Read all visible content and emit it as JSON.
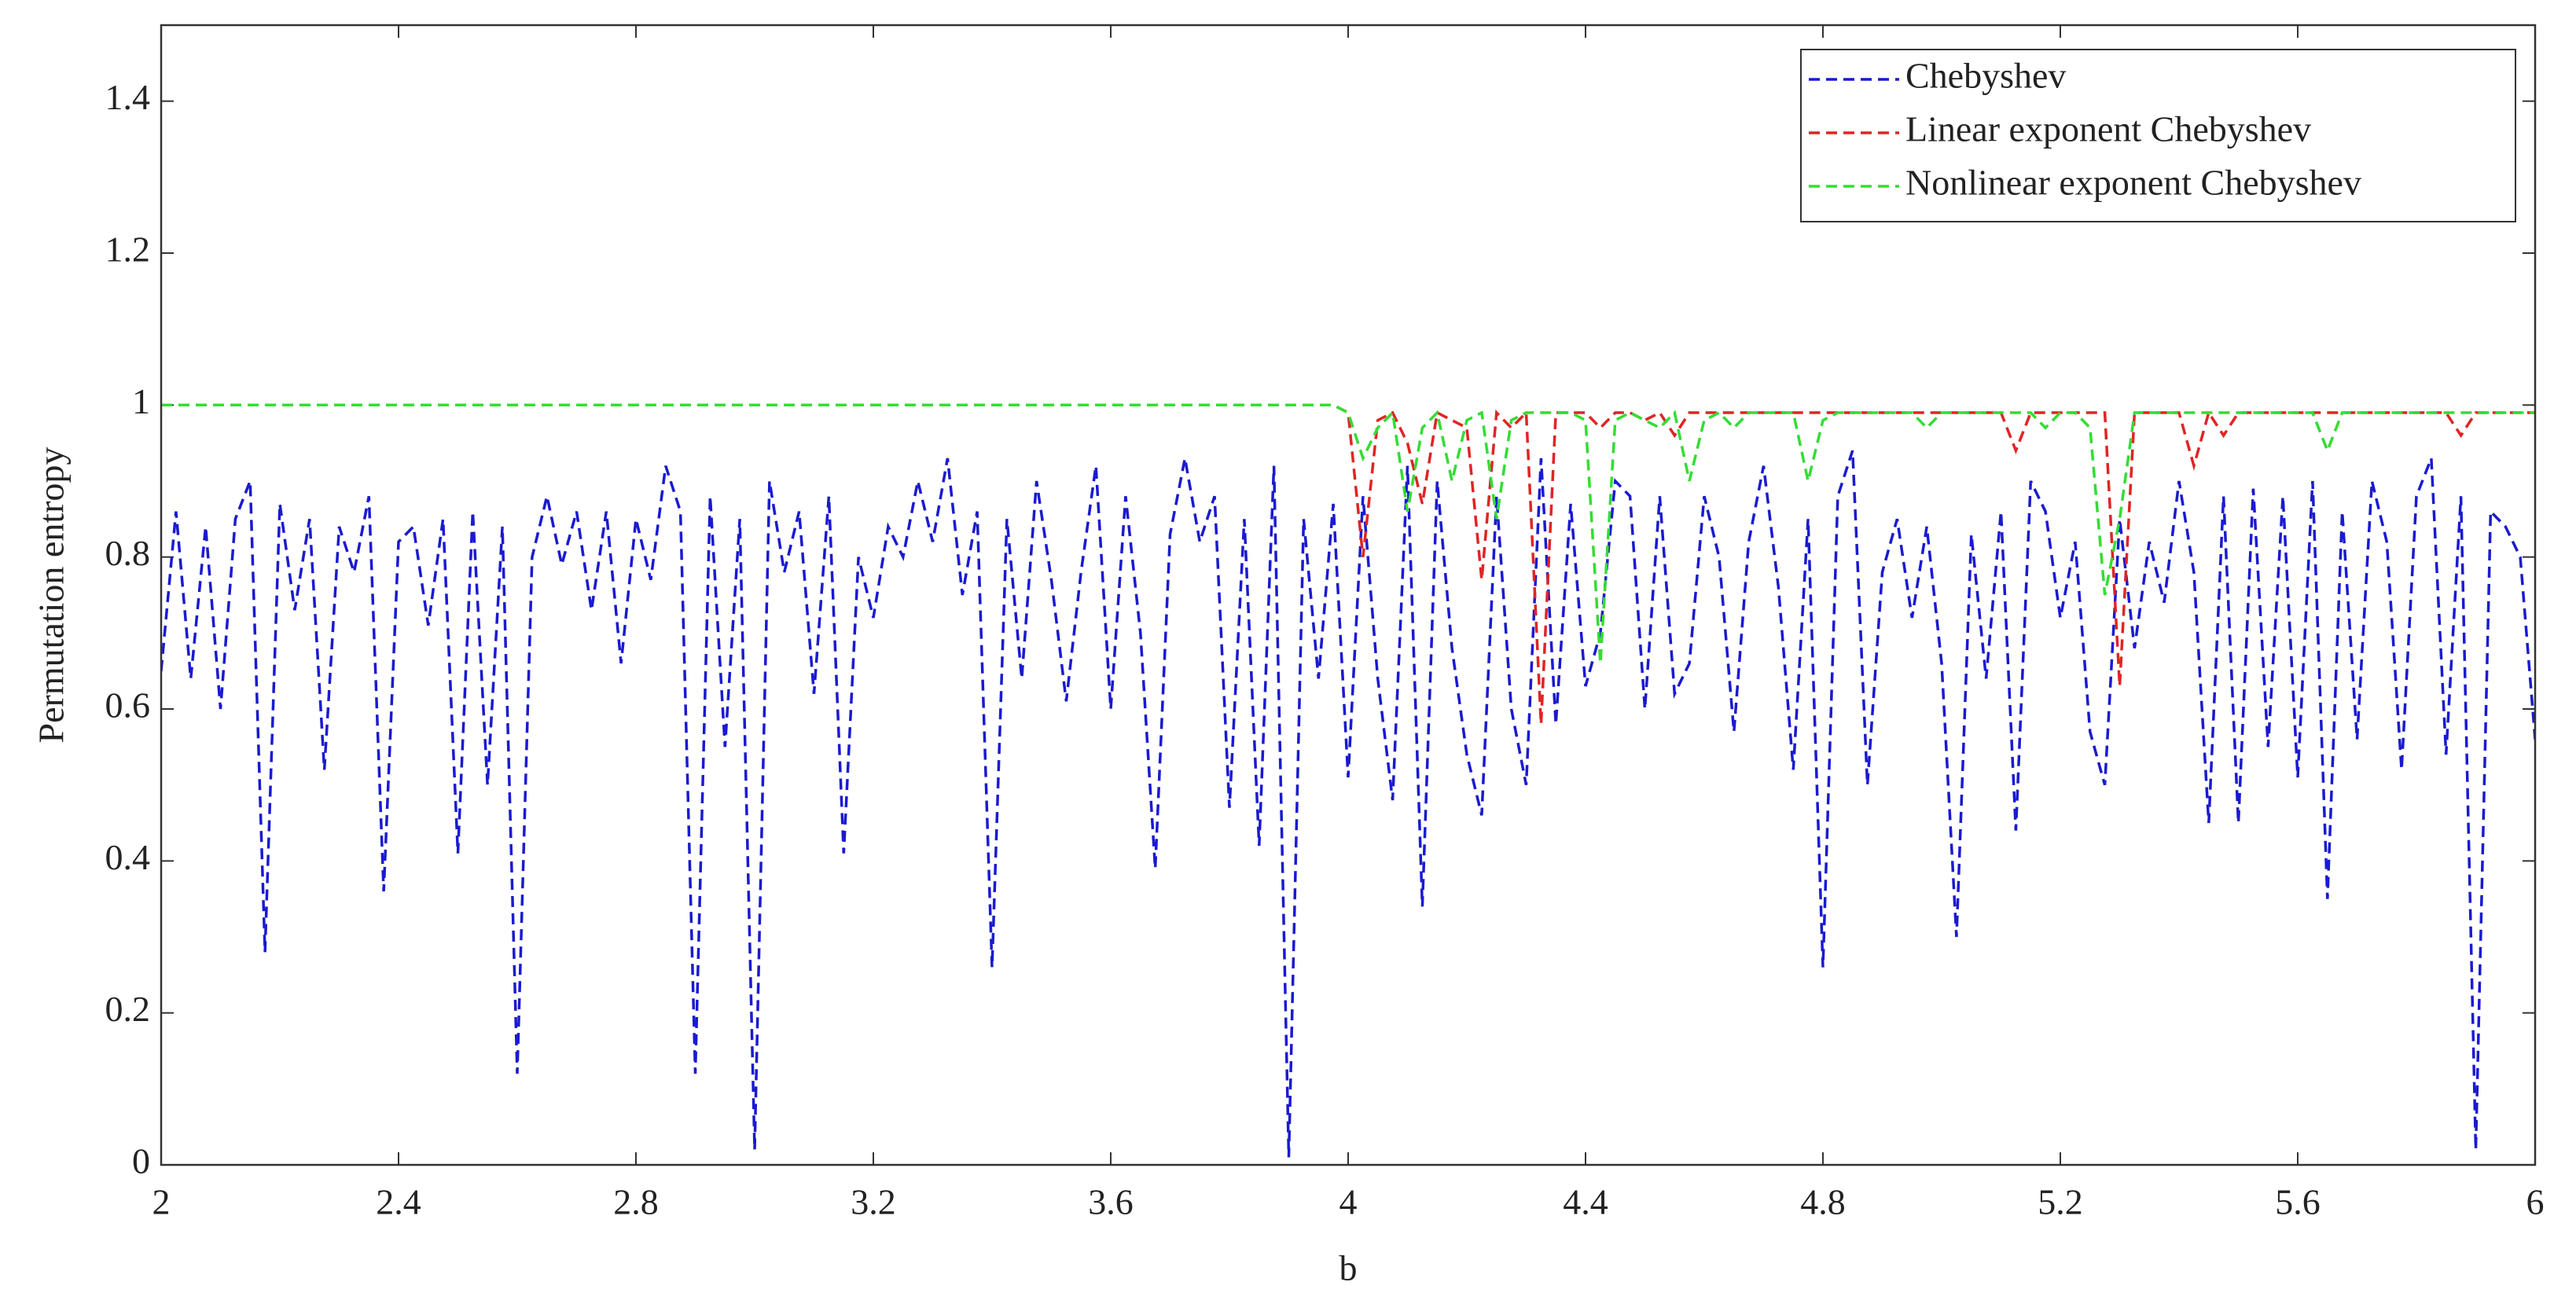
{
  "chart_data": {
    "type": "line",
    "xlabel": "b",
    "ylabel": "Permutation entropy",
    "xlim": [
      2,
      6
    ],
    "ylim": [
      0,
      1.5
    ],
    "xticks": [
      2,
      2.4,
      2.8,
      3.2,
      3.6,
      4,
      4.4,
      4.8,
      5.2,
      5.6,
      6
    ],
    "yticks": [
      0,
      0.2,
      0.4,
      0.6,
      0.8,
      1,
      1.2,
      1.4
    ],
    "legend": "upper right",
    "x": [
      2,
      2.025,
      2.05,
      2.075,
      2.1,
      2.125,
      2.15,
      2.175,
      2.2,
      2.225,
      2.25,
      2.275,
      2.3,
      2.325,
      2.35,
      2.375,
      2.4,
      2.425,
      2.45,
      2.475,
      2.5,
      2.525,
      2.55,
      2.575,
      2.6,
      2.625,
      2.65,
      2.675,
      2.7,
      2.725,
      2.75,
      2.775,
      2.8,
      2.825,
      2.85,
      2.875,
      2.9,
      2.925,
      2.95,
      2.975,
      3,
      3.025,
      3.05,
      3.075,
      3.1,
      3.125,
      3.15,
      3.175,
      3.2,
      3.225,
      3.25,
      3.275,
      3.3,
      3.325,
      3.35,
      3.375,
      3.4,
      3.425,
      3.45,
      3.475,
      3.5,
      3.525,
      3.55,
      3.575,
      3.6,
      3.625,
      3.65,
      3.675,
      3.7,
      3.725,
      3.75,
      3.775,
      3.8,
      3.825,
      3.85,
      3.875,
      3.9,
      3.925,
      3.95,
      3.975,
      4,
      4.025,
      4.05,
      4.075,
      4.1,
      4.125,
      4.15,
      4.175,
      4.2,
      4.225,
      4.25,
      4.275,
      4.3,
      4.325,
      4.35,
      4.375,
      4.4,
      4.425,
      4.45,
      4.475,
      4.5,
      4.525,
      4.55,
      4.575,
      4.6,
      4.625,
      4.65,
      4.675,
      4.7,
      4.725,
      4.75,
      4.775,
      4.8,
      4.825,
      4.85,
      4.875,
      4.9,
      4.925,
      4.95,
      4.975,
      5,
      5.025,
      5.05,
      5.075,
      5.1,
      5.125,
      5.15,
      5.175,
      5.2,
      5.225,
      5.25,
      5.275,
      5.3,
      5.325,
      5.35,
      5.375,
      5.4,
      5.425,
      5.45,
      5.475,
      5.5,
      5.525,
      5.55,
      5.575,
      5.6,
      5.625,
      5.65,
      5.675,
      5.7,
      5.725,
      5.75,
      5.775,
      5.8,
      5.825,
      5.85,
      5.875,
      5.9,
      5.925,
      5.95,
      5.975,
      6
    ],
    "series": [
      {
        "name": "Chebyshev",
        "color": "#1a1ad0",
        "values": [
          0.65,
          0.86,
          0.64,
          0.84,
          0.6,
          0.85,
          0.9,
          0.28,
          0.87,
          0.73,
          0.85,
          0.52,
          0.84,
          0.78,
          0.88,
          0.36,
          0.82,
          0.84,
          0.71,
          0.85,
          0.41,
          0.86,
          0.5,
          0.84,
          0.12,
          0.8,
          0.88,
          0.79,
          0.86,
          0.73,
          0.86,
          0.66,
          0.85,
          0.77,
          0.92,
          0.86,
          0.12,
          0.88,
          0.55,
          0.85,
          0.02,
          0.9,
          0.78,
          0.86,
          0.62,
          0.88,
          0.41,
          0.8,
          0.72,
          0.84,
          0.8,
          0.9,
          0.82,
          0.93,
          0.75,
          0.86,
          0.26,
          0.85,
          0.64,
          0.9,
          0.77,
          0.61,
          0.78,
          0.92,
          0.6,
          0.88,
          0.7,
          0.39,
          0.83,
          0.93,
          0.82,
          0.88,
          0.47,
          0.85,
          0.42,
          0.92,
          0.01,
          0.85,
          0.64,
          0.87,
          0.51,
          0.88,
          0.64,
          0.48,
          0.92,
          0.34,
          0.9,
          0.68,
          0.54,
          0.46,
          0.88,
          0.6,
          0.5,
          0.93,
          0.58,
          0.87,
          0.63,
          0.7,
          0.9,
          0.88,
          0.6,
          0.88,
          0.62,
          0.66,
          0.88,
          0.8,
          0.57,
          0.82,
          0.92,
          0.76,
          0.52,
          0.85,
          0.26,
          0.88,
          0.94,
          0.5,
          0.78,
          0.85,
          0.72,
          0.84,
          0.66,
          0.3,
          0.83,
          0.64,
          0.86,
          0.44,
          0.9,
          0.86,
          0.72,
          0.82,
          0.57,
          0.5,
          0.85,
          0.68,
          0.82,
          0.74,
          0.9,
          0.78,
          0.45,
          0.88,
          0.45,
          0.89,
          0.55,
          0.88,
          0.51,
          0.9,
          0.35,
          0.86,
          0.56,
          0.9,
          0.82,
          0.52,
          0.88,
          0.93,
          0.54,
          0.88,
          0.02,
          0.86,
          0.84,
          0.8,
          0.56
        ]
      },
      {
        "name": "Linear exponent Chebyshev",
        "color": "#e02424",
        "values": [
          1,
          1,
          1,
          1,
          1,
          1,
          1,
          1,
          1,
          1,
          1,
          1,
          1,
          1,
          1,
          1,
          1,
          1,
          1,
          1,
          1,
          1,
          1,
          1,
          1,
          1,
          1,
          1,
          1,
          1,
          1,
          1,
          1,
          1,
          1,
          1,
          1,
          1,
          1,
          1,
          1,
          1,
          1,
          1,
          1,
          1,
          1,
          1,
          1,
          1,
          1,
          1,
          1,
          1,
          1,
          1,
          1,
          1,
          1,
          1,
          1,
          1,
          1,
          1,
          1,
          1,
          1,
          1,
          1,
          1,
          1,
          1,
          1,
          1,
          1,
          1,
          1,
          1,
          1,
          1,
          0.99,
          0.8,
          0.98,
          0.99,
          0.95,
          0.87,
          0.99,
          0.98,
          0.97,
          0.77,
          0.99,
          0.97,
          0.99,
          0.58,
          0.99,
          0.99,
          0.99,
          0.97,
          0.99,
          0.99,
          0.98,
          0.99,
          0.96,
          0.99,
          0.99,
          0.99,
          0.99,
          0.99,
          0.99,
          0.99,
          0.99,
          0.99,
          0.99,
          0.99,
          0.99,
          0.99,
          0.99,
          0.99,
          0.99,
          0.99,
          0.99,
          0.99,
          0.99,
          0.99,
          0.99,
          0.94,
          0.99,
          0.99,
          0.99,
          0.99,
          0.99,
          0.99,
          0.63,
          0.99,
          0.99,
          0.99,
          0.99,
          0.92,
          0.99,
          0.96,
          0.99,
          0.99,
          0.99,
          0.99,
          0.99,
          0.99,
          0.99,
          0.99,
          0.99,
          0.99,
          0.99,
          0.99,
          0.99,
          0.99,
          0.99,
          0.96,
          0.99,
          0.99,
          0.99,
          0.99,
          0.99
        ]
      },
      {
        "name": "Nonlinear exponent Chebyshev",
        "color": "#33dd33",
        "values": [
          1,
          1,
          1,
          1,
          1,
          1,
          1,
          1,
          1,
          1,
          1,
          1,
          1,
          1,
          1,
          1,
          1,
          1,
          1,
          1,
          1,
          1,
          1,
          1,
          1,
          1,
          1,
          1,
          1,
          1,
          1,
          1,
          1,
          1,
          1,
          1,
          1,
          1,
          1,
          1,
          1,
          1,
          1,
          1,
          1,
          1,
          1,
          1,
          1,
          1,
          1,
          1,
          1,
          1,
          1,
          1,
          1,
          1,
          1,
          1,
          1,
          1,
          1,
          1,
          1,
          1,
          1,
          1,
          1,
          1,
          1,
          1,
          1,
          1,
          1,
          1,
          1,
          1,
          1,
          1,
          0.99,
          0.93,
          0.97,
          0.99,
          0.86,
          0.97,
          0.99,
          0.9,
          0.98,
          0.99,
          0.85,
          0.98,
          0.99,
          0.99,
          0.99,
          0.99,
          0.98,
          0.66,
          0.98,
          0.99,
          0.98,
          0.97,
          0.99,
          0.9,
          0.98,
          0.99,
          0.97,
          0.99,
          0.99,
          0.99,
          0.99,
          0.9,
          0.98,
          0.99,
          0.99,
          0.99,
          0.99,
          0.99,
          0.99,
          0.97,
          0.99,
          0.99,
          0.99,
          0.99,
          0.99,
          0.99,
          0.99,
          0.97,
          0.99,
          0.99,
          0.97,
          0.75,
          0.85,
          0.99,
          0.99,
          0.99,
          0.99,
          0.99,
          0.99,
          0.99,
          0.99,
          0.99,
          0.99,
          0.99,
          0.99,
          0.99,
          0.94,
          0.99,
          0.99,
          0.99,
          0.99,
          0.99,
          0.99,
          0.99,
          0.99,
          0.99,
          0.99,
          0.99,
          0.99,
          0.99,
          0.99
        ]
      }
    ]
  }
}
